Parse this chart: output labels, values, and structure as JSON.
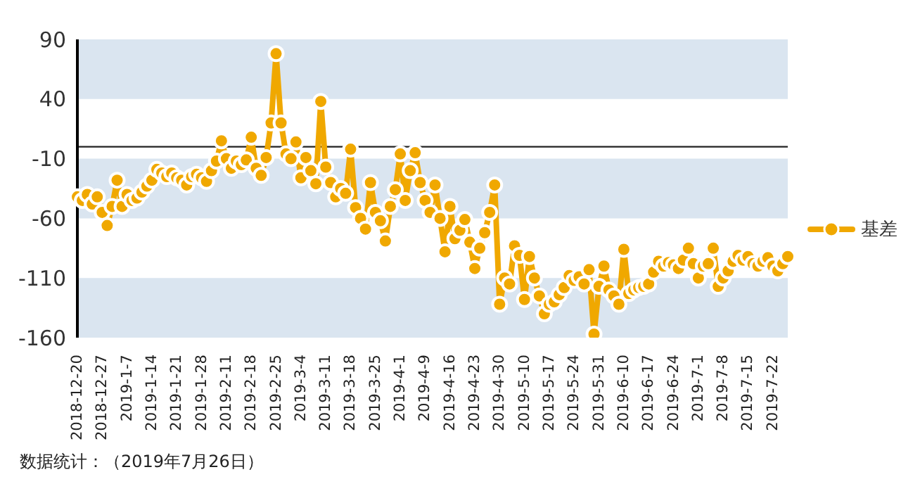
{
  "chart_data": {
    "type": "line",
    "categories": [
      "2018-12-20",
      null,
      null,
      null,
      null,
      "2018-12-27",
      null,
      null,
      null,
      null,
      "2019-1-7",
      null,
      null,
      null,
      null,
      "2019-1-14",
      null,
      null,
      null,
      null,
      "2019-1-21",
      null,
      null,
      null,
      null,
      "2019-1-28",
      null,
      null,
      null,
      null,
      "2019-2-11",
      null,
      null,
      null,
      null,
      "2019-2-18",
      null,
      null,
      null,
      null,
      "2019-2-25",
      null,
      null,
      null,
      null,
      "2019-3-4",
      null,
      null,
      null,
      null,
      "2019-3-11",
      null,
      null,
      null,
      null,
      "2019-3-18",
      null,
      null,
      null,
      null,
      "2019-3-25",
      null,
      null,
      null,
      null,
      "2019-4-1",
      null,
      null,
      null,
      null,
      "2019-4-9",
      null,
      null,
      null,
      null,
      "2019-4-16",
      null,
      null,
      null,
      null,
      "2019-4-23",
      null,
      null,
      null,
      null,
      "2019-4-30",
      null,
      null,
      null,
      null,
      "2019-5-10",
      null,
      null,
      null,
      null,
      "2019-5-17",
      null,
      null,
      null,
      null,
      "2019-5-24",
      null,
      null,
      null,
      null,
      "2019-5-31",
      null,
      null,
      null,
      null,
      "2019-6-10",
      null,
      null,
      null,
      null,
      "2019-6-17",
      null,
      null,
      null,
      null,
      "2019-6-24",
      null,
      null,
      null,
      null,
      "2019-7-1",
      null,
      null,
      null,
      null,
      "2019-7-8",
      null,
      null,
      null,
      null,
      "2019-7-15",
      null,
      null,
      null,
      null,
      "2019-7-22",
      null,
      null,
      null
    ],
    "series": [
      {
        "name": "基差",
        "color": "#f0a800",
        "values": [
          -42,
          -45,
          -40,
          -48,
          -42,
          -55,
          -66,
          -50,
          -28,
          -50,
          -40,
          -45,
          -43,
          -38,
          -33,
          -28,
          -19,
          -22,
          -25,
          -22,
          -26,
          -28,
          -32,
          -25,
          -23,
          -26,
          -29,
          -20,
          -12,
          5,
          -10,
          -18,
          -12,
          -15,
          -11,
          8,
          -18,
          -24,
          -9,
          20,
          78,
          20,
          -6,
          -10,
          4,
          -26,
          -9,
          -20,
          -31,
          38,
          -17,
          -30,
          -42,
          -35,
          -39,
          -2,
          -51,
          -60,
          -69,
          -30,
          -55,
          -62,
          -79,
          -50,
          -36,
          -6,
          -45,
          -20,
          -5,
          -30,
          -45,
          -55,
          -32,
          -60,
          -88,
          -50,
          -77,
          -70,
          -61,
          -80,
          -102,
          -85,
          -72,
          -55,
          -32,
          -132,
          -110,
          -115,
          -83,
          -91,
          -128,
          -92,
          -110,
          -125,
          -140,
          -132,
          -130,
          -124,
          -118,
          -108,
          -112,
          -109,
          -115,
          -103,
          -157,
          -117,
          -100,
          -120,
          -125,
          -132,
          -86,
          -123,
          -120,
          -118,
          -117,
          -115,
          -105,
          -96,
          -100,
          -97,
          -99,
          -102,
          -95,
          -85,
          -98,
          -110,
          -100,
          -98,
          -85,
          -117,
          -110,
          -104,
          -96,
          -91,
          -95,
          -92,
          -98,
          -100,
          -96,
          -93,
          -100,
          -104,
          -98,
          -92
        ]
      }
    ],
    "ylim": [
      -160,
      90
    ],
    "yticks": [
      90,
      40,
      -10,
      -60,
      -110,
      -160
    ],
    "bands": [
      {
        "axis": "y",
        "from": 40,
        "to": 90,
        "color": "#dae5f0"
      },
      {
        "axis": "y",
        "from": -60,
        "to": -10,
        "color": "#dae5f0"
      },
      {
        "axis": "y",
        "from": -160,
        "to": -110,
        "color": "#dae5f0"
      }
    ],
    "ref_lines": [
      {
        "axis": "y",
        "value": 0,
        "color": "#222222"
      }
    ],
    "grid": false,
    "legend": "right",
    "marker": "circle",
    "line_style": "solid",
    "annotations": [
      "数据统计：（2019年7月26日）"
    ]
  }
}
